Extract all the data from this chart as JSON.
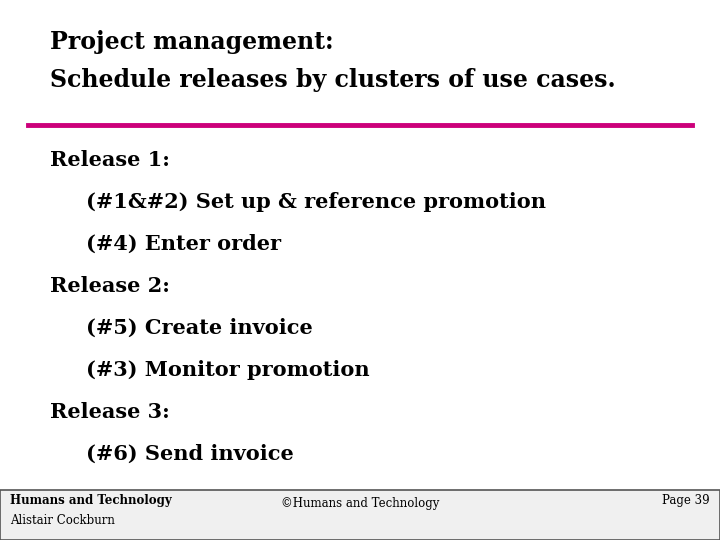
{
  "title_line1": "Project management:",
  "title_line2": "Schedule releases by clusters of use cases.",
  "title_fontsize": 17,
  "title_color": "#000000",
  "title_font": "serif",
  "separator_color": "#cc007a",
  "separator_linewidth": 3.5,
  "body_lines": [
    {
      "text": "Release 1:",
      "indent": 0.07,
      "bold": true,
      "fontsize": 15
    },
    {
      "text": "(#1&#2) Set up & reference promotion",
      "indent": 0.12,
      "bold": true,
      "fontsize": 15
    },
    {
      "text": "(#4) Enter order",
      "indent": 0.12,
      "bold": true,
      "fontsize": 15
    },
    {
      "text": "Release 2:",
      "indent": 0.07,
      "bold": true,
      "fontsize": 15
    },
    {
      "text": "(#5) Create invoice",
      "indent": 0.12,
      "bold": true,
      "fontsize": 15
    },
    {
      "text": "(#3) Monitor promotion",
      "indent": 0.12,
      "bold": true,
      "fontsize": 15
    },
    {
      "text": "Release 3:",
      "indent": 0.07,
      "bold": true,
      "fontsize": 15
    },
    {
      "text": "(#6) Send invoice",
      "indent": 0.12,
      "bold": true,
      "fontsize": 15
    }
  ],
  "footer_left_bold": "Humans and Technology",
  "footer_left_normal": "Alistair Cockburn",
  "footer_center": "©Humans and Technology",
  "footer_right": "Page 39",
  "footer_fontsize": 8.5,
  "footer_bg": "#f0f0f0",
  "bg_color": "#ffffff"
}
